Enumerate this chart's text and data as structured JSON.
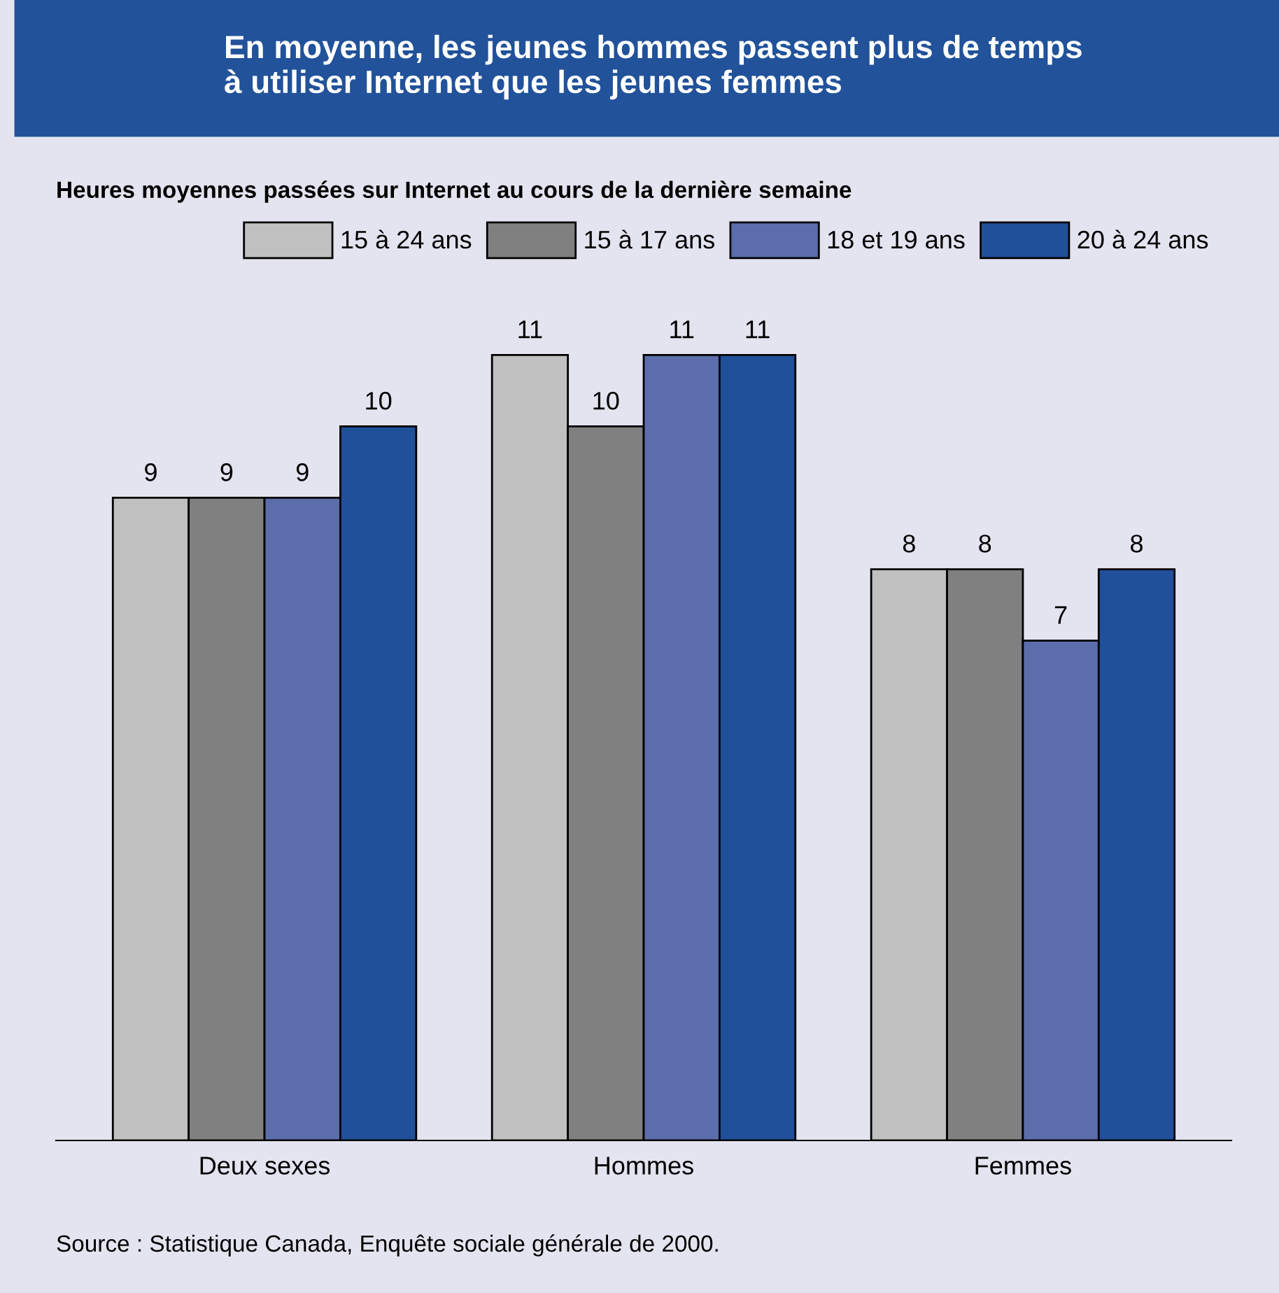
{
  "chart_data": {
    "type": "bar",
    "title": "En moyenne, les jeunes hommes passent plus de temps\nà utiliser Internet que les jeunes femmes",
    "subtitle": "Heures moyennes passées sur Internet au cours de la dernière semaine",
    "categories": [
      "Deux sexes",
      "Hommes",
      "Femmes"
    ],
    "series": [
      {
        "name": "15 à 24 ans",
        "color": "#c0c0c0",
        "values": [
          9,
          11,
          8
        ]
      },
      {
        "name": "15 à 17 ans",
        "color": "#808080",
        "values": [
          9,
          10,
          8
        ]
      },
      {
        "name": "18 et 19 ans",
        "color": "#5b6eab",
        "values": [
          9,
          11,
          7
        ]
      },
      {
        "name": "20 à 24 ans",
        "color": "#21509a",
        "values": [
          10,
          11,
          8
        ]
      }
    ],
    "data_labels": true,
    "legend": "top right",
    "grid": false,
    "annotations": [
      "Source : Statistique Canada, Enquête sociale générale de 2000."
    ]
  }
}
